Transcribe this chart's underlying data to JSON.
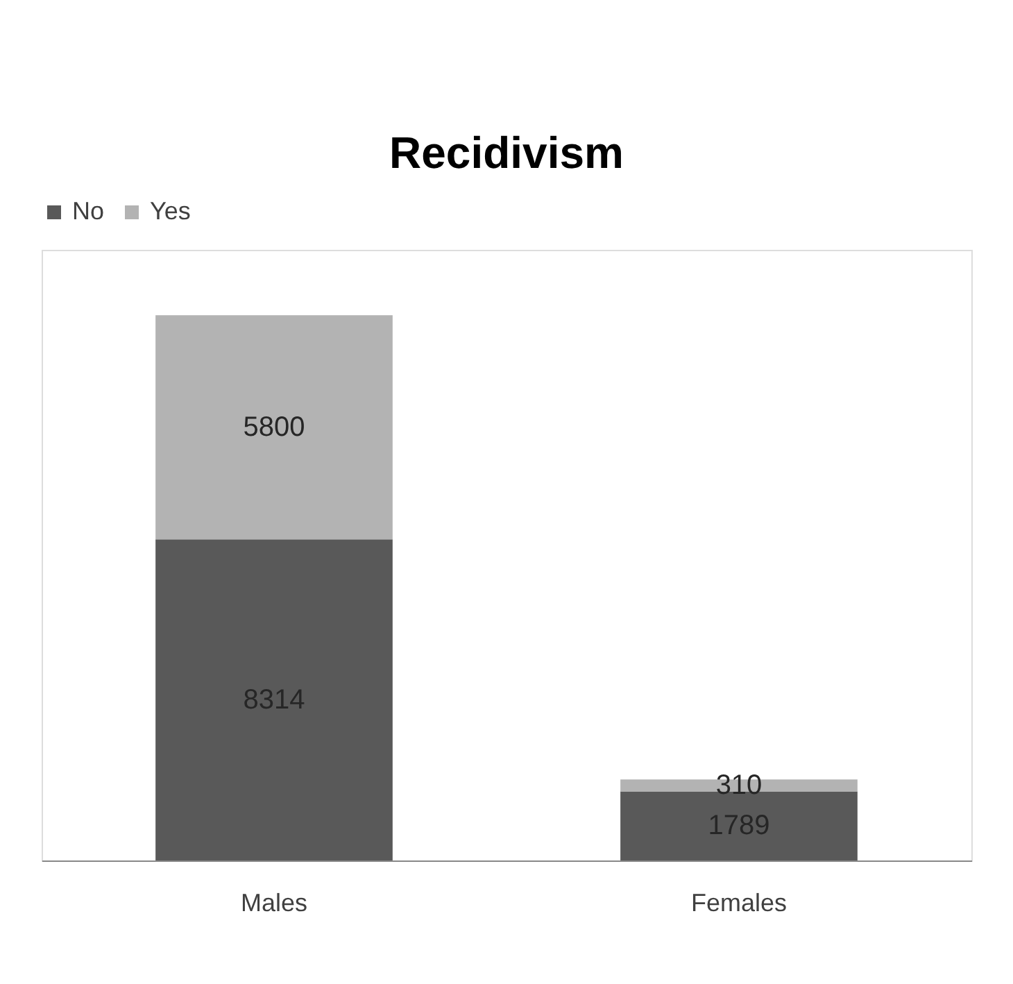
{
  "chart_data": {
    "type": "bar",
    "title": "Recidivism",
    "categories": [
      "Males",
      "Females"
    ],
    "stacked": true,
    "data_labels": true,
    "legend": "top",
    "grid": false,
    "series": [
      {
        "name": "No",
        "color": "#595959",
        "values": [
          8314,
          1789
        ]
      },
      {
        "name": "Yes",
        "color": "#b3b3b3",
        "values": [
          5800,
          310
        ]
      }
    ]
  }
}
